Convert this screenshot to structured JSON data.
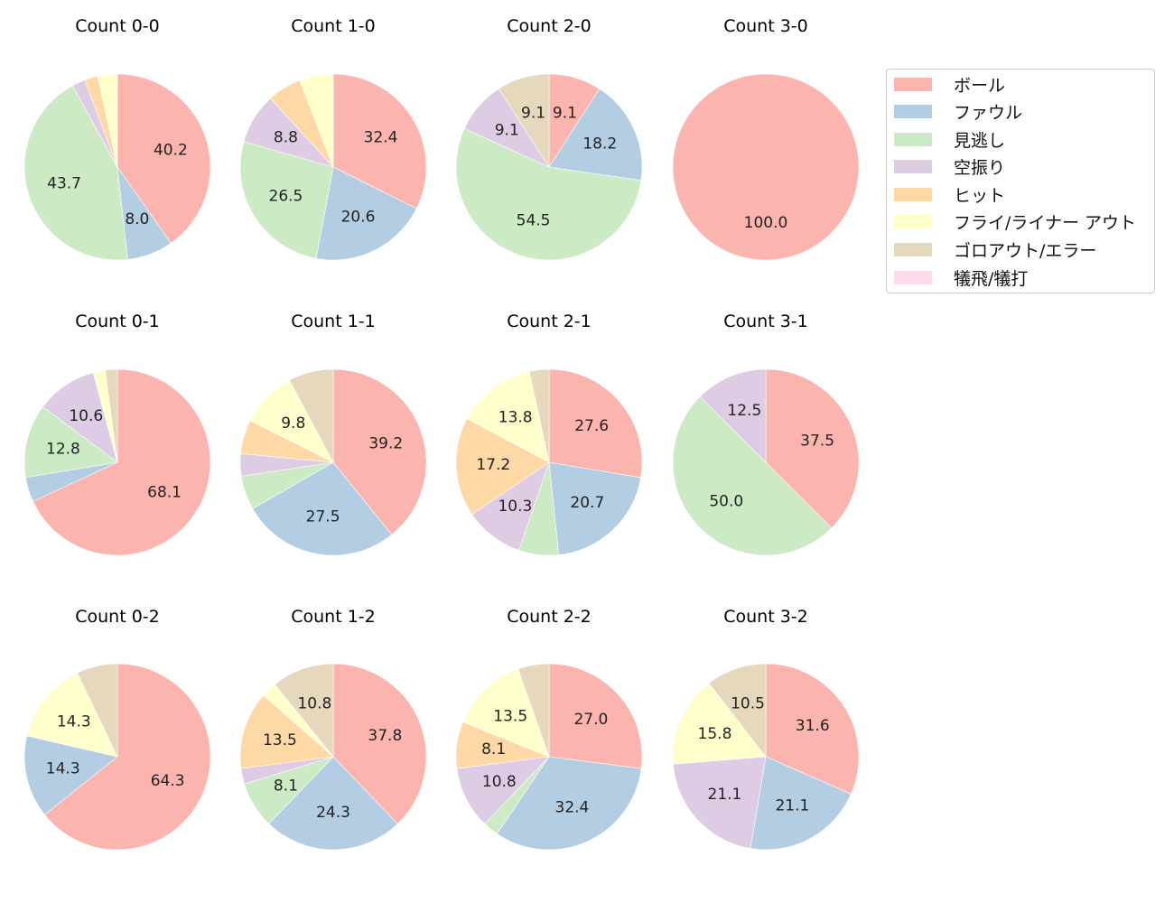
{
  "chart_data": {
    "type": "pie",
    "title": "",
    "legend": {
      "position": "upper right",
      "entries": [
        "ボール",
        "ファウル",
        "見逃し",
        "空振り",
        "ヒット",
        "フライ/ライナー アウト",
        "ゴロアウト/エラー",
        "犠飛/犠打"
      ]
    },
    "colors": [
      "#fbb4ae",
      "#b3cde3",
      "#ccebc5",
      "#decbe4",
      "#fed9a6",
      "#ffffcc",
      "#e5d8bd",
      "#fddaec"
    ],
    "label_threshold_note": "labels shown only for slices >= ~8%",
    "charts": [
      {
        "title": "Count 0-0",
        "values": [
          40.2,
          8.0,
          43.7,
          2.3,
          2.3,
          3.4,
          0,
          0
        ]
      },
      {
        "title": "Count 1-0",
        "values": [
          32.4,
          20.6,
          26.5,
          8.8,
          5.9,
          5.9,
          0,
          0
        ]
      },
      {
        "title": "Count 2-0",
        "values": [
          9.1,
          18.2,
          54.5,
          9.1,
          0,
          0,
          9.1,
          0
        ]
      },
      {
        "title": "Count 3-0",
        "values": [
          100.0,
          0,
          0,
          0,
          0,
          0,
          0,
          0
        ]
      },
      {
        "title": "Count 0-1",
        "values": [
          68.1,
          4.3,
          12.8,
          10.6,
          0,
          2.1,
          2.1,
          0
        ]
      },
      {
        "title": "Count 1-1",
        "values": [
          39.2,
          27.5,
          5.9,
          3.9,
          5.9,
          9.8,
          7.8,
          0
        ]
      },
      {
        "title": "Count 2-1",
        "values": [
          27.6,
          20.7,
          6.9,
          10.3,
          17.2,
          13.8,
          3.4,
          0
        ]
      },
      {
        "title": "Count 3-1",
        "values": [
          37.5,
          0,
          50.0,
          12.5,
          0,
          0,
          0,
          0
        ]
      },
      {
        "title": "Count 0-2",
        "values": [
          64.3,
          14.3,
          0,
          0,
          0,
          14.3,
          7.1,
          0
        ]
      },
      {
        "title": "Count 1-2",
        "values": [
          37.8,
          24.3,
          8.1,
          2.7,
          13.5,
          2.7,
          10.8,
          0
        ]
      },
      {
        "title": "Count 2-2",
        "values": [
          27.0,
          32.4,
          2.7,
          10.8,
          8.1,
          13.5,
          5.4,
          0
        ]
      },
      {
        "title": "Count 3-2",
        "values": [
          31.6,
          21.1,
          0,
          21.1,
          0,
          15.8,
          10.5,
          0
        ]
      }
    ]
  }
}
